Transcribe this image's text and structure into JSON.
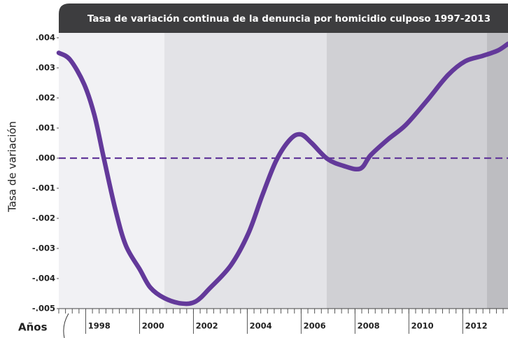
{
  "chart_data": {
    "type": "line",
    "title": "Tasa de variación continua de la denuncia por homicidio culposo 1997-2013",
    "y_label": "Tasa de variación",
    "x_label": "Años",
    "xlim": [
      1997,
      2013.68
    ],
    "xticks": [
      1998,
      2000,
      2002,
      2004,
      2006,
      2008,
      2010,
      2012
    ],
    "ylim": [
      -0.005,
      0.004
    ],
    "yticks": [
      {
        "value": 0.004,
        "label": ".004"
      },
      {
        "value": 0.003,
        "label": ".003"
      },
      {
        "value": 0.002,
        "label": ".002"
      },
      {
        "value": 0.001,
        "label": ".001"
      },
      {
        "value": 0,
        "label": ".000"
      },
      {
        "value": -0.001,
        "label": "-.001"
      },
      {
        "value": -0.002,
        "label": "-.002"
      },
      {
        "value": -0.003,
        "label": "-.003"
      },
      {
        "value": -0.004,
        "label": "-.004"
      },
      {
        "value": -0.005,
        "label": "-.005"
      }
    ],
    "bands": [
      {
        "x": [
          1997,
          2000.92
        ],
        "color": "#f1f1f4"
      },
      {
        "x": [
          2000.92,
          2006.95
        ],
        "color": "#e3e3e7"
      },
      {
        "x": [
          2006.95,
          2012.9
        ],
        "color": "#d0d0d4"
      },
      {
        "x": [
          2012.9,
          2013.68
        ],
        "color": "#bdbdc1"
      }
    ],
    "hline": {
      "value": 0,
      "color": "#63399a",
      "style": "dashed"
    },
    "series": [
      {
        "color": "#63399a",
        "x": [
          1997.0,
          1997.42,
          1997.94,
          1998.32,
          1998.66,
          1999.1,
          1999.49,
          2000.01,
          2000.4,
          2000.92,
          2001.57,
          2002.09,
          2002.61,
          2003.39,
          2004.04,
          2004.56,
          2005.08,
          2005.6,
          2005.99,
          2006.38,
          2006.97,
          2007.55,
          2008.19,
          2008.58,
          2009.23,
          2009.88,
          2010.66,
          2011.45,
          2012.09,
          2012.74,
          2013.31,
          2013.68
        ],
        "values": [
          0.0035,
          0.00327,
          0.00246,
          0.00144,
          5e-05,
          -0.0017,
          -0.0029,
          -0.0037,
          -0.0043,
          -0.00465,
          -0.00483,
          -0.00476,
          -0.00432,
          -0.00356,
          -0.0025,
          -0.00123,
          -7e-05,
          0.00063,
          0.00079,
          0.00051,
          -2e-05,
          -0.00025,
          -0.00035,
          0.0001,
          0.00063,
          0.0011,
          0.0019,
          0.00276,
          0.00322,
          0.0034,
          0.00358,
          0.0038
        ]
      }
    ]
  }
}
